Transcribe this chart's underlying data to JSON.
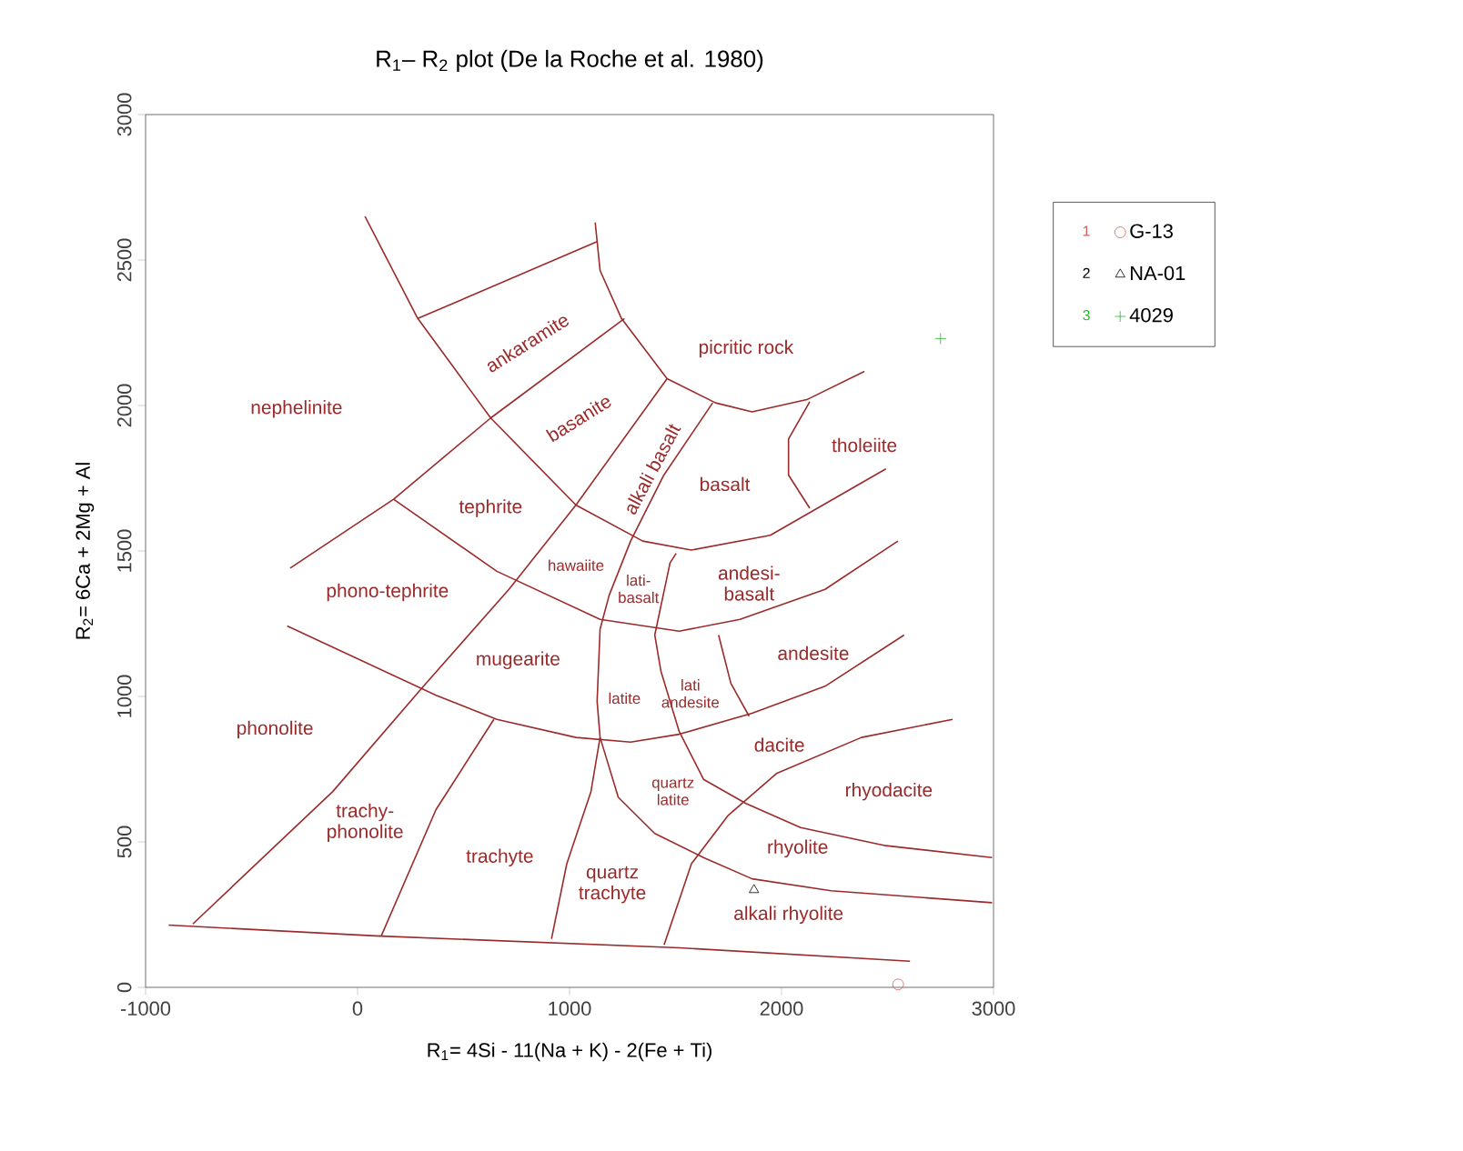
{
  "chart_data": {
    "type": "scatter",
    "title": "R$_{1}$– R$_{2}$ plot (De la Roche et al. 1980)",
    "xlabel": "R$_{1}$= 4Si - 11(Na + K) - 2(Fe + Ti)",
    "ylabel": "R$_{2}$= 6Ca + 2Mg + Al",
    "xlim": [
      -1000,
      3000
    ],
    "ylim": [
      0,
      3000
    ],
    "xticks": [
      -1000,
      0,
      1000,
      2000,
      3000
    ],
    "yticks": [
      0,
      500,
      1000,
      1500,
      2000,
      2500,
      3000
    ],
    "grid": false,
    "legend": "right",
    "series": [
      {
        "name": "G-13",
        "marker": "circle",
        "color": "#d06060",
        "x": [
          2550
        ],
        "values": [
          10
        ]
      },
      {
        "name": "NA-01",
        "marker": "triangle",
        "color": "#000000",
        "x": [
          1870
        ],
        "values": [
          335
        ]
      },
      {
        "name": "4029",
        "marker": "cross",
        "color": "#22bb22",
        "x": [
          2750
        ],
        "values": [
          2230
        ]
      },
      {
        "type": "line",
        "marker": "none",
        "color": "#9b2a2a",
        "x": [
          35,
          284,
          628,
          1030,
          1345,
          1574,
          1947,
          2492
        ],
        "values": [
          2650,
          2299,
          1957,
          1658,
          1534,
          1503,
          1554,
          1782
        ]
      },
      {
        "type": "line",
        "marker": "none",
        "color": "#9b2a2a",
        "x": [
          1121,
          1144,
          1245,
          1460,
          1689,
          1861,
          2119,
          2391
        ],
        "values": [
          2629,
          2464,
          2299,
          2092,
          2009,
          1978,
          2020,
          2117
        ]
      },
      {
        "type": "line",
        "marker": "none",
        "color": "#9b2a2a",
        "x": [
          284,
          1130
        ],
        "values": [
          2299,
          2563
        ]
      },
      {
        "type": "line",
        "marker": "none",
        "color": "#9b2a2a",
        "x": [
          1259,
          628,
          170,
          -318
        ],
        "values": [
          2299,
          1957,
          1678,
          1441
        ]
      },
      {
        "type": "line",
        "marker": "none",
        "color": "#9b2a2a",
        "x": [
          1460,
          1030,
          714,
          299,
          -117,
          -777
        ],
        "values": [
          2092,
          1658,
          1368,
          1025,
          673,
          218
        ]
      },
      {
        "type": "line",
        "marker": "none",
        "color": "#9b2a2a",
        "x": [
          1675,
          1445,
          1288,
          1187,
          1144,
          1130,
          1144,
          1101,
          987,
          915
        ],
        "values": [
          2009,
          1761,
          1534,
          1348,
          1231,
          983,
          859,
          673,
          425,
          167
        ]
      },
      {
        "type": "line",
        "marker": "none",
        "color": "#9b2a2a",
        "x": [
          170,
          657,
          1144,
          1517,
          1804,
          2205,
          2549
        ],
        "values": [
          1678,
          1430,
          1265,
          1224,
          1265,
          1368,
          1534
        ]
      },
      {
        "type": "line",
        "marker": "none",
        "color": "#9b2a2a",
        "x": [
          -332,
          370,
          657,
          1030,
          1288,
          1517,
          1861,
          2205,
          2578
        ],
        "values": [
          1242,
          1004,
          921,
          859,
          843,
          870,
          942,
          1035,
          1211
        ]
      },
      {
        "type": "line",
        "marker": "none",
        "color": "#9b2a2a",
        "x": [
          1503,
          1474,
          1402,
          1431,
          1517,
          1632,
          1832,
          2090,
          2492,
          2993
        ],
        "values": [
          1492,
          1459,
          1211,
          1087,
          880,
          715,
          632,
          549,
          487,
          446
        ]
      },
      {
        "type": "line",
        "marker": "none",
        "color": "#9b2a2a",
        "x": [
          1703,
          1761,
          1847
        ],
        "values": [
          1211,
          1045,
          932
        ]
      },
      {
        "type": "line",
        "marker": "none",
        "color": "#9b2a2a",
        "x": [
          1144,
          1230,
          1402,
          1632,
          1861,
          2234,
          2993
        ],
        "values": [
          859,
          653,
          529,
          446,
          373,
          332,
          291
        ]
      },
      {
        "type": "line",
        "marker": "none",
        "color": "#9b2a2a",
        "x": [
          2807,
          2377,
          1976,
          1747,
          1575,
          1446
        ],
        "values": [
          921,
          859,
          735,
          590,
          425,
          146
        ]
      },
      {
        "type": "line",
        "marker": "none",
        "color": "#9b2a2a",
        "x": [
          643,
          370,
          112
        ],
        "values": [
          921,
          611,
          177
        ]
      },
      {
        "type": "line",
        "marker": "none",
        "color": "#9b2a2a",
        "x": [
          -891,
          84,
          1517,
          2606
        ],
        "values": [
          214,
          177,
          136,
          90
        ]
      },
      {
        "type": "line",
        "marker": "none",
        "color": "#9b2a2a",
        "x": [
          2133,
          2033,
          2033,
          2133
        ],
        "values": [
          2013,
          1885,
          1761,
          1647
        ]
      }
    ],
    "annotations": [
      "1",
      "2",
      "3",
      "ankaramite",
      "picritic rock",
      "nephelinite",
      "basanite",
      "tholeiite",
      "alkali basalt",
      "basalt",
      "tephrite",
      "andesi-basalt",
      "hawaiite",
      "lati-basalt",
      "phono-tephrite",
      "mugearite",
      "latite",
      "lati andesite",
      "andesite",
      "phonolite",
      "dacite",
      "quartz latite",
      "rhyodacite",
      "trachy-phonolite",
      "trachyte",
      "quartz trachyte",
      "rhyolite",
      "alkali rhyolite"
    ]
  }
}
